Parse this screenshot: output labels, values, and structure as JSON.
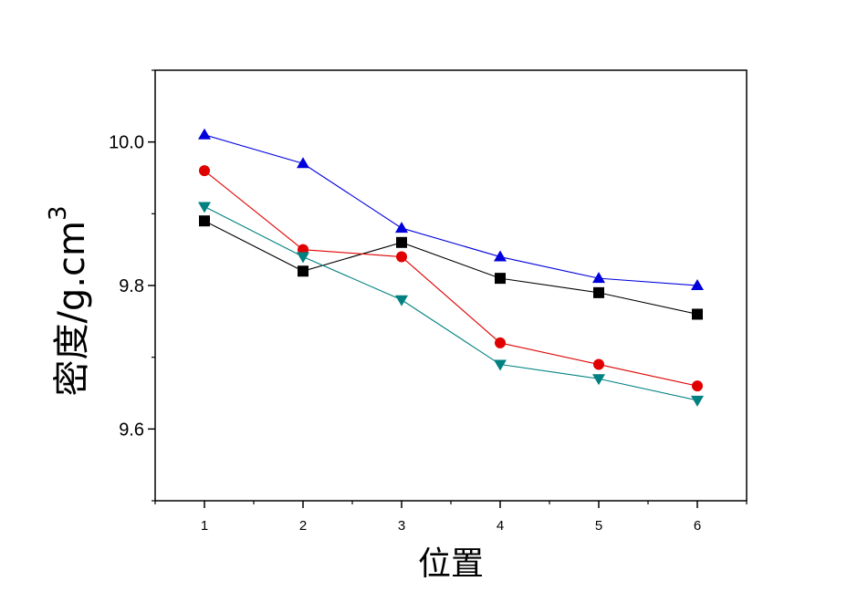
{
  "chart_data": {
    "type": "line",
    "xlabel": "位置",
    "ylabel_main": "密度/g.cm",
    "ylabel_sup": "3",
    "categories": [
      1,
      2,
      3,
      4,
      5,
      6
    ],
    "x_tick_labels": [
      "1",
      "2",
      "3",
      "4",
      "5",
      "6"
    ],
    "xlim": [
      0.5,
      6.5
    ],
    "ylim": [
      9.5,
      10.1
    ],
    "y_ticks": [
      9.6,
      9.8,
      10.0
    ],
    "y_tick_labels": [
      "9.6",
      "9.8",
      "10.0"
    ],
    "grid": false,
    "legend": "none",
    "series": [
      {
        "values": [
          9.89,
          9.82,
          9.86,
          9.81,
          9.79,
          9.76
        ],
        "color": "#000000",
        "marker": "square"
      },
      {
        "values": [
          9.96,
          9.85,
          9.84,
          9.72,
          9.69,
          9.66
        ],
        "color": "#e00000",
        "marker": "circle"
      },
      {
        "values": [
          10.01,
          9.97,
          9.88,
          9.84,
          9.81,
          9.8
        ],
        "color": "#0000dd",
        "marker": "triangle-up"
      },
      {
        "values": [
          9.91,
          9.84,
          9.78,
          9.69,
          9.67,
          9.64
        ],
        "color": "#008080",
        "marker": "triangle-down"
      }
    ]
  }
}
